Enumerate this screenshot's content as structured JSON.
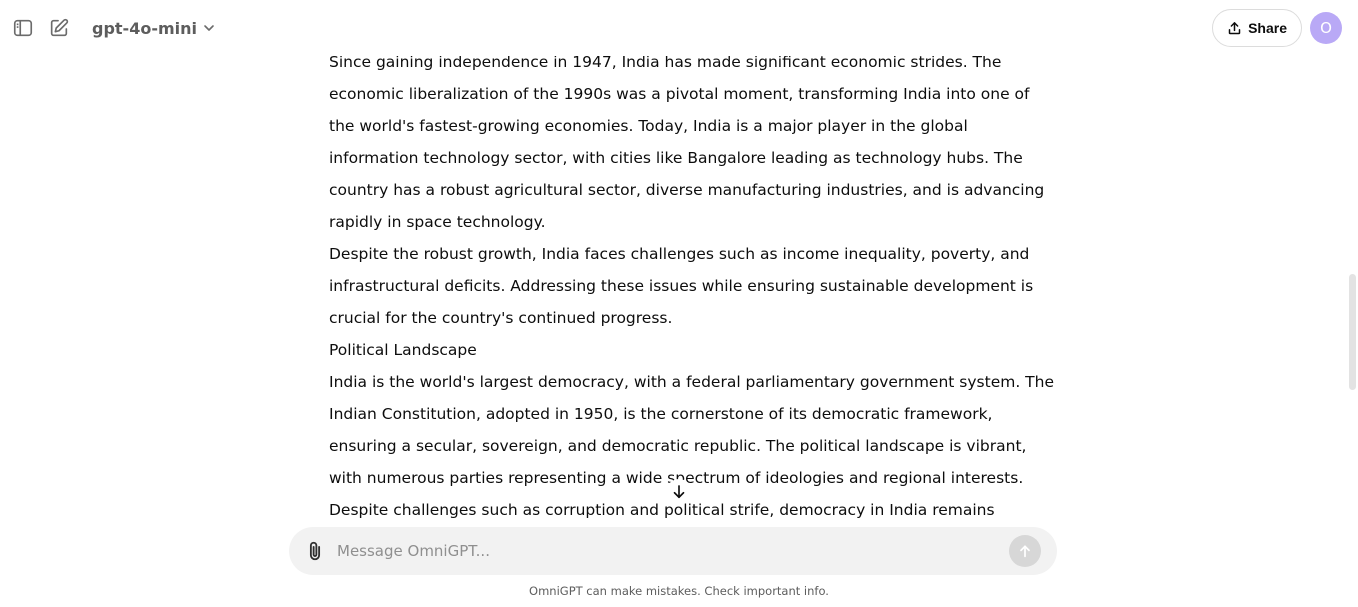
{
  "header": {
    "model_name": "gpt-4o-mini",
    "share_label": "Share",
    "avatar_initial": "O"
  },
  "conversation": {
    "paragraphs": [
      "Since gaining independence in 1947, India has made significant economic strides. The economic liberalization of the 1990s was a pivotal moment, transforming India into one of the world's fastest-growing economies. Today, India is a major player in the global information technology sector, with cities like Bangalore leading as technology hubs. The country has a robust agricultural sector, diverse manufacturing industries, and is advancing rapidly in space technology.",
      "Despite the robust growth, India faces challenges such as income inequality, poverty, and infrastructural deficits. Addressing these issues while ensuring sustainable development is crucial for the country's continued progress.",
      "Political Landscape",
      "India is the world's largest democracy, with a federal parliamentary government system. The Indian Constitution, adopted in 1950, is the cornerstone of its democratic framework, ensuring a secular, sovereign, and democratic republic. The political landscape is vibrant, with numerous parties representing a wide spectrum of ideologies and regional interests. Despite challenges such as corruption and political strife, democracy in India remains resilient, with active citizen"
    ]
  },
  "composer": {
    "placeholder": "Message OmniGPT..."
  },
  "footer": {
    "disclaimer": "OmniGPT can make mistakes. Check important info."
  },
  "icons": {
    "sidebar_toggle": "sidebar-toggle-icon",
    "new_chat": "new-chat-icon",
    "chevron": "chevron-down-icon",
    "share": "upload-icon",
    "attach": "paperclip-icon",
    "send": "arrow-up-icon",
    "scroll_down": "arrow-down-icon"
  }
}
